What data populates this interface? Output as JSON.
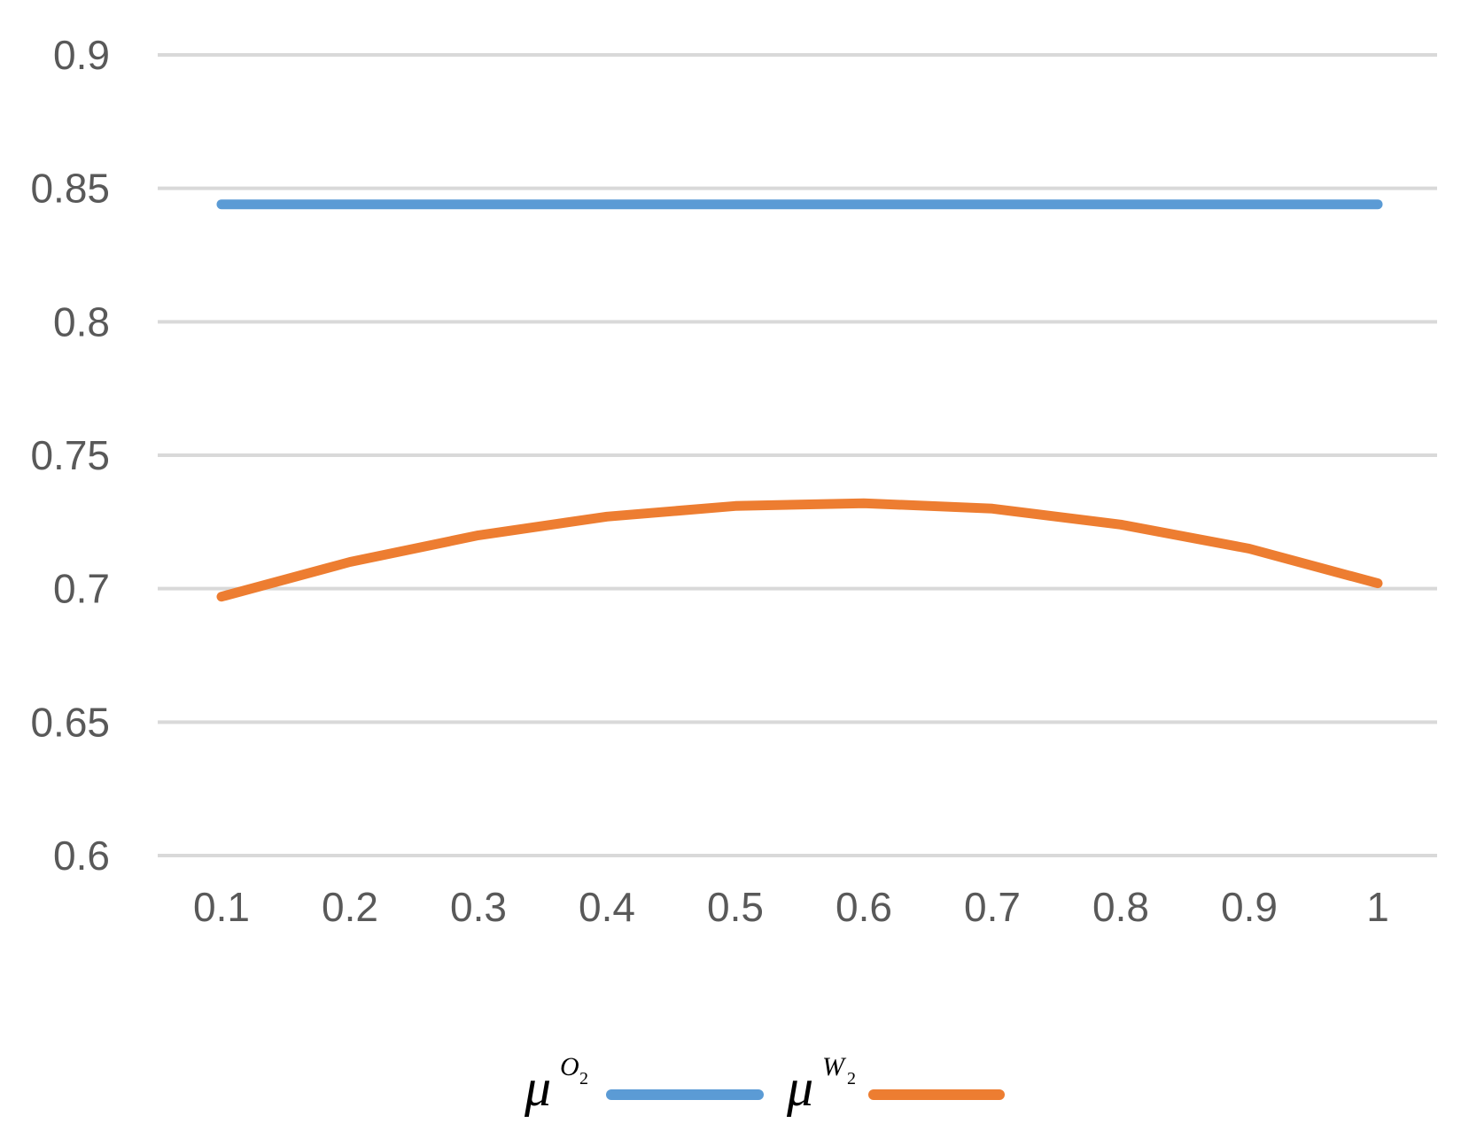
{
  "chart_data": {
    "type": "line",
    "x": [
      0.1,
      0.2,
      0.3,
      0.4,
      0.5,
      0.6,
      0.7,
      0.8,
      0.9,
      1
    ],
    "x_tick_labels": [
      "0.1",
      "0.2",
      "0.3",
      "0.4",
      "0.5",
      "0.6",
      "0.7",
      "0.8",
      "0.9",
      "1"
    ],
    "y_tick_labels": [
      "0.6",
      "0.65",
      "0.7",
      "0.75",
      "0.8",
      "0.85",
      "0.9"
    ],
    "y_ticks": [
      0.6,
      0.65,
      0.7,
      0.75,
      0.8,
      0.85,
      0.9
    ],
    "ylim": [
      0.6,
      0.9
    ],
    "grid": "horizontal",
    "legend_position": "bottom",
    "series": [
      {
        "symbol": "μ",
        "sup_letter": "O",
        "sub": "2",
        "color": "#5b9bd5",
        "values": [
          0.844,
          0.844,
          0.844,
          0.844,
          0.844,
          0.844,
          0.844,
          0.844,
          0.844,
          0.844
        ]
      },
      {
        "symbol": "μ",
        "sup_letter": "W",
        "sub": "2",
        "color": "#ed7d31",
        "values": [
          0.697,
          0.71,
          0.72,
          0.727,
          0.731,
          0.732,
          0.73,
          0.724,
          0.715,
          0.702
        ]
      }
    ],
    "gridline_color": "#d9d9d9"
  }
}
